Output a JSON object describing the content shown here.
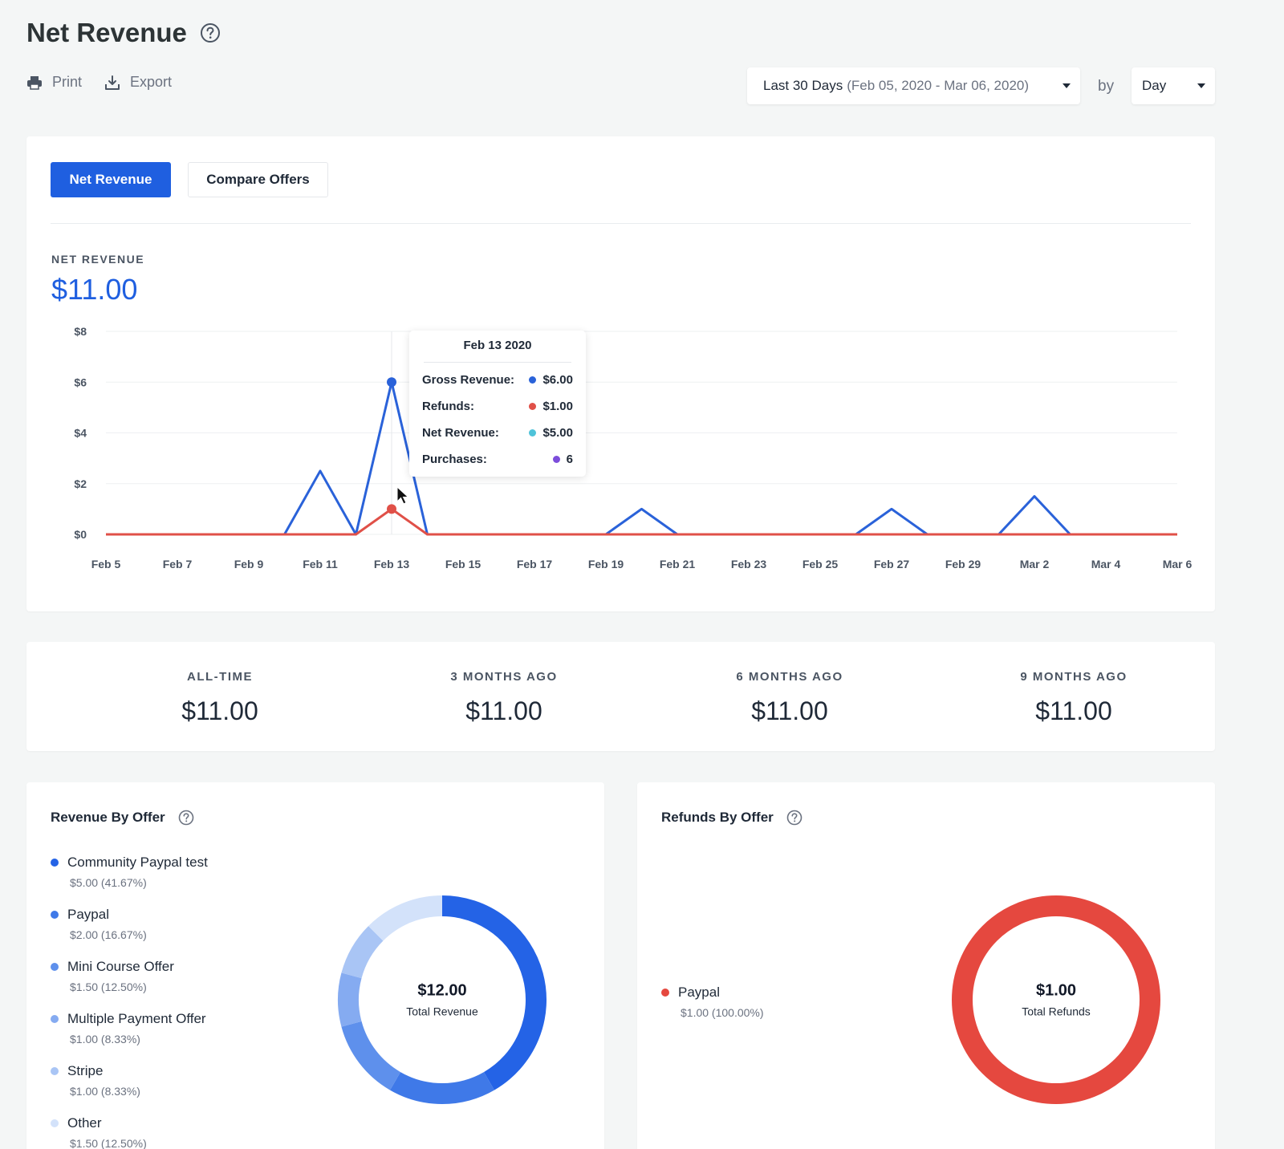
{
  "header": {
    "title": "Net Revenue",
    "print_label": "Print",
    "export_label": "Export"
  },
  "filters": {
    "range_label": "Last 30 Days",
    "range_dates": "(Feb 05, 2020 - Mar 06, 2020)",
    "by_label": "by",
    "group_value": "Day"
  },
  "tabs": [
    {
      "label": "Net Revenue",
      "active": true
    },
    {
      "label": "Compare Offers",
      "active": false
    }
  ],
  "metric": {
    "label": "NET REVENUE",
    "value": "$11.00"
  },
  "chart_data": {
    "type": "line",
    "x": [
      "Feb 5",
      "Feb 6",
      "Feb 7",
      "Feb 8",
      "Feb 9",
      "Feb 10",
      "Feb 11",
      "Feb 12",
      "Feb 13",
      "Feb 14",
      "Feb 15",
      "Feb 16",
      "Feb 17",
      "Feb 18",
      "Feb 19",
      "Feb 20",
      "Feb 21",
      "Feb 22",
      "Feb 23",
      "Feb 24",
      "Feb 25",
      "Feb 26",
      "Feb 27",
      "Feb 28",
      "Feb 29",
      "Mar 1",
      "Mar 2",
      "Mar 3",
      "Mar 4",
      "Mar 5",
      "Mar 6"
    ],
    "x_tick_labels": [
      "Feb 5",
      "Feb 7",
      "Feb 9",
      "Feb 11",
      "Feb 13",
      "Feb 15",
      "Feb 17",
      "Feb 19",
      "Feb 21",
      "Feb 23",
      "Feb 25",
      "Feb 27",
      "Feb 29",
      "Mar 2",
      "Mar 4",
      "Mar 6"
    ],
    "y_tick_labels": [
      "$0",
      "$2",
      "$4",
      "$6",
      "$8"
    ],
    "ylim": [
      0,
      8
    ],
    "grid": true,
    "series": [
      {
        "color": "#2a62d9",
        "values": [
          0,
          0,
          0,
          0,
          0,
          0,
          2.5,
          0,
          6,
          0,
          0,
          0,
          0,
          0,
          0,
          1,
          0,
          0,
          0,
          0,
          0,
          0,
          1,
          0,
          0,
          0,
          1.5,
          0,
          0,
          0,
          0
        ]
      },
      {
        "color": "#e05048",
        "values": [
          0,
          0,
          0,
          0,
          0,
          0,
          0,
          0,
          1,
          0,
          0,
          0,
          0,
          0,
          0,
          0,
          0,
          0,
          0,
          0,
          0,
          0,
          0,
          0,
          0,
          0,
          0,
          0,
          0,
          0,
          0
        ]
      }
    ],
    "highlight_index": 8,
    "tooltip": {
      "title": "Feb 13 2020",
      "rows": [
        {
          "label": "Gross Revenue:",
          "value": "$6.00",
          "color": "#2a62d9"
        },
        {
          "label": "Refunds:",
          "value": "$1.00",
          "color": "#e05048"
        },
        {
          "label": "Net Revenue:",
          "value": "$5.00",
          "color": "#4fc3d9"
        },
        {
          "label": "Purchases:",
          "value": "6",
          "color": "#7c4ddb"
        }
      ]
    }
  },
  "stats": [
    {
      "label": "ALL-TIME",
      "value": "$11.00"
    },
    {
      "label": "3 MONTHS AGO",
      "value": "$11.00"
    },
    {
      "label": "6 MONTHS AGO",
      "value": "$11.00"
    },
    {
      "label": "9 MONTHS AGO",
      "value": "$11.00"
    }
  ],
  "revenue_by_offer": {
    "title": "Revenue By Offer",
    "total_value": "$12.00",
    "total_label": "Total Revenue",
    "items": [
      {
        "name": "Community Paypal test",
        "detail": "$5.00 (41.67%)",
        "value": 5.0,
        "color": "#2463e6"
      },
      {
        "name": "Paypal",
        "detail": "$2.00 (16.67%)",
        "value": 2.0,
        "color": "#3f79e8"
      },
      {
        "name": "Mini Course Offer",
        "detail": "$1.50 (12.50%)",
        "value": 1.5,
        "color": "#5e90ec"
      },
      {
        "name": "Multiple Payment Offer",
        "detail": "$1.00 (8.33%)",
        "value": 1.0,
        "color": "#85abf1"
      },
      {
        "name": "Stripe",
        "detail": "$1.00 (8.33%)",
        "value": 1.0,
        "color": "#a9c5f5"
      },
      {
        "name": "Other",
        "detail": "$1.50 (12.50%)",
        "value": 1.5,
        "color": "#d3e2fa"
      }
    ]
  },
  "refunds_by_offer": {
    "title": "Refunds By Offer",
    "total_value": "$1.00",
    "total_label": "Total Refunds",
    "items": [
      {
        "name": "Paypal",
        "detail": "$1.00 (100.00%)",
        "value": 1.0,
        "color": "#e5483f"
      }
    ]
  }
}
